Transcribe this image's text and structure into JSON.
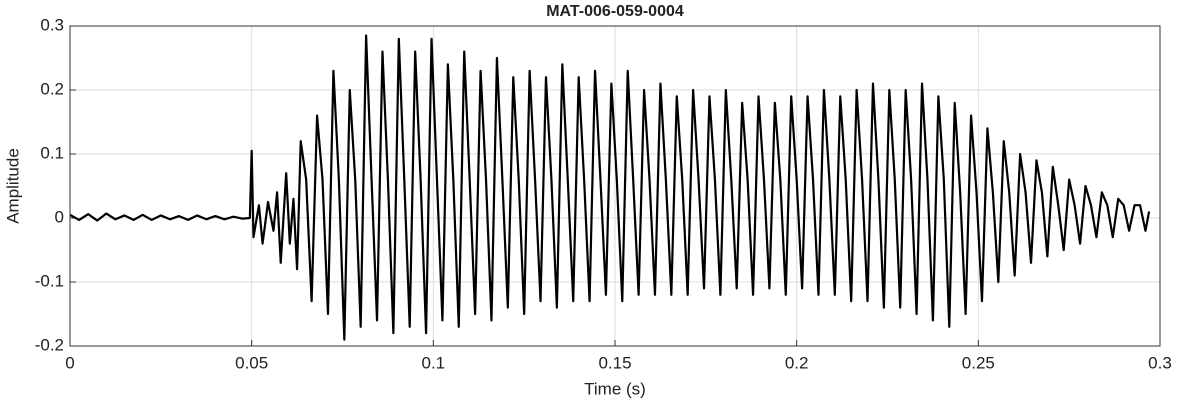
{
  "chart_data": {
    "type": "line",
    "title": "MAT-006-059-0004",
    "x_label": "Time (s)",
    "y_label": "Amplitude",
    "color": "#000000",
    "grid": true,
    "xlim": [
      0,
      0.3
    ],
    "xticks": [
      0,
      0.05,
      0.1,
      0.15,
      0.2,
      0.25,
      0.3
    ],
    "ylim": [
      -0.2,
      0.3
    ],
    "yticks": [
      -0.2,
      -0.1,
      0,
      0.1,
      0.2,
      0.3
    ],
    "x": [
      0,
      0.0025,
      0.005,
      0.0075,
      0.01,
      0.0125,
      0.015,
      0.0175,
      0.02,
      0.0225,
      0.025,
      0.0275,
      0.03,
      0.0325,
      0.035,
      0.0375,
      0.04,
      0.0425,
      0.045,
      0.0475,
      0.0495,
      0.05,
      0.0505,
      0.052,
      0.053,
      0.0545,
      0.056,
      0.057,
      0.058,
      0.0595,
      0.0605,
      0.0615,
      0.0625,
      0.0635,
      0.065,
      0.0665,
      0.068,
      0.0695,
      0.071,
      0.0725,
      0.074,
      0.0755,
      0.077,
      0.0785,
      0.08,
      0.0815,
      0.083,
      0.0845,
      0.086,
      0.0875,
      0.089,
      0.0905,
      0.092,
      0.0935,
      0.095,
      0.0965,
      0.098,
      0.0995,
      0.101,
      0.1025,
      0.104,
      0.1055,
      0.107,
      0.1085,
      0.11,
      0.1115,
      0.113,
      0.1145,
      0.116,
      0.1175,
      0.119,
      0.1205,
      0.122,
      0.1235,
      0.125,
      0.1265,
      0.128,
      0.1295,
      0.131,
      0.1325,
      0.134,
      0.1355,
      0.137,
      0.1385,
      0.14,
      0.1415,
      0.143,
      0.1445,
      0.146,
      0.1475,
      0.149,
      0.1505,
      0.152,
      0.1535,
      0.155,
      0.1565,
      0.158,
      0.1595,
      0.161,
      0.1625,
      0.164,
      0.1655,
      0.167,
      0.1685,
      0.17,
      0.1715,
      0.173,
      0.1745,
      0.176,
      0.1775,
      0.179,
      0.1805,
      0.182,
      0.1835,
      0.185,
      0.1865,
      0.188,
      0.1895,
      0.191,
      0.1925,
      0.194,
      0.1955,
      0.197,
      0.1985,
      0.2,
      0.2015,
      0.203,
      0.2045,
      0.206,
      0.2075,
      0.209,
      0.2105,
      0.212,
      0.2135,
      0.215,
      0.2165,
      0.218,
      0.2195,
      0.221,
      0.2225,
      0.224,
      0.2255,
      0.227,
      0.2285,
      0.23,
      0.2315,
      0.233,
      0.2345,
      0.236,
      0.2375,
      0.239,
      0.2405,
      0.242,
      0.2435,
      0.245,
      0.2465,
      0.248,
      0.2495,
      0.251,
      0.2525,
      0.254,
      0.2555,
      0.257,
      0.2585,
      0.26,
      0.2615,
      0.263,
      0.2645,
      0.266,
      0.2675,
      0.269,
      0.2705,
      0.272,
      0.2735,
      0.275,
      0.2765,
      0.278,
      0.2795,
      0.281,
      0.2825,
      0.284,
      0.2855,
      0.287,
      0.2885,
      0.29,
      0.2915,
      0.293,
      0.2945,
      0.296,
      0.297
    ],
    "values": [
      0.005,
      -0.003,
      0.006,
      -0.004,
      0.007,
      -0.002,
      0.004,
      -0.003,
      0.005,
      -0.003,
      0.004,
      -0.002,
      0.003,
      -0.003,
      0.004,
      -0.002,
      0.003,
      -0.002,
      0.002,
      -0.001,
      0,
      0.105,
      -0.03,
      0.02,
      -0.04,
      0.025,
      -0.02,
      0.04,
      -0.07,
      0.07,
      -0.04,
      0.03,
      -0.08,
      0.12,
      0.06,
      -0.13,
      0.16,
      0.06,
      -0.15,
      0.23,
      0.06,
      -0.19,
      0.2,
      0.06,
      -0.17,
      0.285,
      0.06,
      -0.16,
      0.26,
      0.06,
      -0.18,
      0.28,
      0.06,
      -0.17,
      0.26,
      0.06,
      -0.18,
      0.28,
      0.06,
      -0.16,
      0.24,
      0.06,
      -0.17,
      0.26,
      0.06,
      -0.15,
      0.23,
      0.06,
      -0.16,
      0.25,
      0.06,
      -0.14,
      0.22,
      0.06,
      -0.15,
      0.23,
      0.06,
      -0.13,
      0.22,
      0.06,
      -0.14,
      0.24,
      0.06,
      -0.13,
      0.22,
      0.06,
      -0.13,
      0.23,
      0.06,
      -0.12,
      0.21,
      0.06,
      -0.13,
      0.23,
      0.06,
      -0.12,
      0.2,
      0.06,
      -0.12,
      0.21,
      0.06,
      -0.12,
      0.19,
      0.06,
      -0.12,
      0.2,
      0.06,
      -0.11,
      0.19,
      0.06,
      -0.12,
      0.2,
      0.06,
      -0.11,
      0.18,
      0.06,
      -0.12,
      0.19,
      0.06,
      -0.11,
      0.18,
      0.06,
      -0.12,
      0.19,
      0.06,
      -0.11,
      0.19,
      0.06,
      -0.12,
      0.2,
      0.06,
      -0.12,
      0.19,
      0.06,
      -0.13,
      0.2,
      0.06,
      -0.13,
      0.21,
      0.06,
      -0.14,
      0.2,
      0.06,
      -0.14,
      0.2,
      0.06,
      -0.15,
      0.21,
      0.06,
      -0.16,
      0.19,
      0.06,
      -0.17,
      0.18,
      0.04,
      -0.15,
      0.16,
      0.04,
      -0.13,
      0.14,
      0.04,
      -0.1,
      0.12,
      0.04,
      -0.09,
      0.1,
      0.04,
      -0.07,
      0.09,
      0.04,
      -0.06,
      0.08,
      0.02,
      -0.05,
      0.06,
      0.02,
      -0.04,
      0.05,
      0.02,
      -0.03,
      0.04,
      0.02,
      -0.03,
      0.03,
      0.02,
      -0.02,
      0.02,
      0.02,
      -0.02,
      0.01
    ]
  }
}
